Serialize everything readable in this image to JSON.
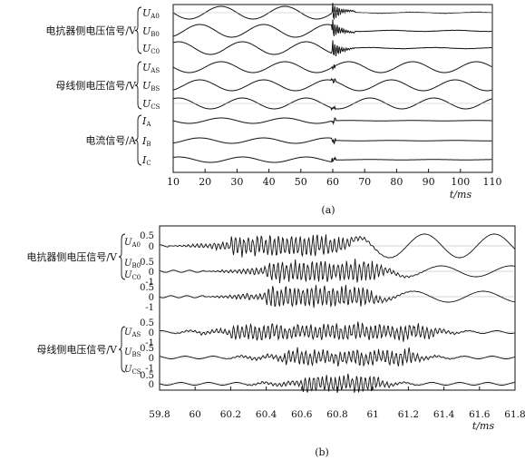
{
  "chart_data": [
    {
      "type": "line",
      "panel_label": "(a)",
      "xlabel": "t/ms",
      "xlim": [
        10,
        110
      ],
      "x_ticks": [
        "10",
        "20",
        "30",
        "40",
        "50",
        "60",
        "70",
        "80",
        "90",
        "100",
        "110"
      ],
      "groups": [
        {
          "label": "电抗器侧电压信号/V",
          "series": [
            "UA0",
            "UB0",
            "UC0"
          ]
        },
        {
          "label": "母线侧电压信号/V",
          "series": [
            "UAS",
            "UBS",
            "UCS"
          ]
        },
        {
          "label": "电流信号/A",
          "series": [
            "IA",
            "IB",
            "IC"
          ]
        }
      ],
      "series": [
        {
          "name": "UA0",
          "label_main": "U",
          "label_sub": "A0",
          "phase_deg": 0,
          "amplitude": 1.0,
          "pre_fault": "sinusoid 50 Hz",
          "fault_ms": 60,
          "post_fault": "high-frequency decaying oscillation"
        },
        {
          "name": "UB0",
          "label_main": "U",
          "label_sub": "B0",
          "phase_deg": 120,
          "amplitude": 1.0,
          "pre_fault": "sinusoid 50 Hz",
          "fault_ms": 60,
          "post_fault": "high-frequency decaying oscillation"
        },
        {
          "name": "UC0",
          "label_main": "U",
          "label_sub": "C0",
          "phase_deg": 240,
          "amplitude": 1.0,
          "pre_fault": "sinusoid 50 Hz",
          "fault_ms": 60,
          "post_fault": "high-frequency decaying oscillation"
        },
        {
          "name": "UAS",
          "label_main": "U",
          "label_sub": "AS",
          "phase_deg": 0,
          "amplitude": 0.8,
          "pre_fault": "sinusoid 50 Hz",
          "fault_ms": 60,
          "post_fault": "sinusoid"
        },
        {
          "name": "UBS",
          "label_main": "U",
          "label_sub": "BS",
          "phase_deg": 120,
          "amplitude": 0.8,
          "pre_fault": "sinusoid 50 Hz",
          "fault_ms": 60,
          "post_fault": "sinusoid"
        },
        {
          "name": "UCS",
          "label_main": "U",
          "label_sub": "CS",
          "phase_deg": 240,
          "amplitude": 0.8,
          "pre_fault": "sinusoid 50 Hz",
          "fault_ms": 60,
          "post_fault": "sinusoid"
        },
        {
          "name": "IA",
          "label_main": "I",
          "label_sub": "A",
          "phase_deg": 0,
          "amplitude": 0.25,
          "pre_fault": "small sinusoid",
          "fault_ms": 60,
          "post_fault": "near zero"
        },
        {
          "name": "IB",
          "label_main": "I",
          "label_sub": "B",
          "phase_deg": 120,
          "amplitude": 0.25,
          "pre_fault": "small sinusoid",
          "fault_ms": 60,
          "post_fault": "near zero"
        },
        {
          "name": "IC",
          "label_main": "I",
          "label_sub": "C",
          "phase_deg": 240,
          "amplitude": 0.25,
          "pre_fault": "small sinusoid",
          "fault_ms": 60,
          "post_fault": "near zero"
        }
      ]
    },
    {
      "type": "line",
      "panel_label": "(b)",
      "xlabel": "t/ms",
      "xlim": [
        59.8,
        61.8
      ],
      "x_ticks": [
        "59.8",
        "60",
        "60.2",
        "60.4",
        "60.6",
        "60.8",
        "61",
        "61.2",
        "61.4",
        "61.6",
        "61.8"
      ],
      "groups": [
        {
          "label": "电抗器侧电压信号/V",
          "series": [
            "UA0",
            "UB0",
            "UC0"
          ]
        },
        {
          "label": "母线侧电压信号/V",
          "series": [
            "UAS",
            "UBS",
            "UCS"
          ]
        }
      ],
      "series": [
        {
          "name": "UA0",
          "label_main": "U",
          "label_sub": "A0",
          "y_ticks": [
            "0.5",
            "0"
          ],
          "burst_ms": [
            60.2,
            60.8
          ],
          "after": "slow oscillation"
        },
        {
          "name": "UB0",
          "label_main": "U",
          "label_sub": "B0",
          "y_ticks": [
            "0.5",
            "0",
            "-1"
          ],
          "burst_ms": [
            60.4,
            61.0
          ],
          "after": "slow oscillation"
        },
        {
          "name": "UC0",
          "label_main": "U",
          "label_sub": "C0",
          "y_ticks": [
            "0.5",
            "0",
            "-1"
          ],
          "burst_ms": [
            60.4,
            60.95
          ],
          "after": "slow oscillation"
        },
        {
          "name": "UAS",
          "label_main": "U",
          "label_sub": "AS",
          "y_ticks": [
            "0.5",
            "0",
            "-1"
          ],
          "burst_ms": [
            60.2,
            61.3
          ],
          "after": "ripple"
        },
        {
          "name": "UBS",
          "label_main": "U",
          "label_sub": "BS",
          "y_ticks": [
            "0.5",
            "0",
            "-1"
          ],
          "burst_ms": [
            60.5,
            61.2
          ],
          "after": "ripple"
        },
        {
          "name": "UCS",
          "label_main": "U",
          "label_sub": "CS",
          "y_ticks": [
            "0.5",
            "0"
          ],
          "burst_ms": [
            60.6,
            61.0
          ],
          "after": "ripple"
        }
      ]
    }
  ]
}
